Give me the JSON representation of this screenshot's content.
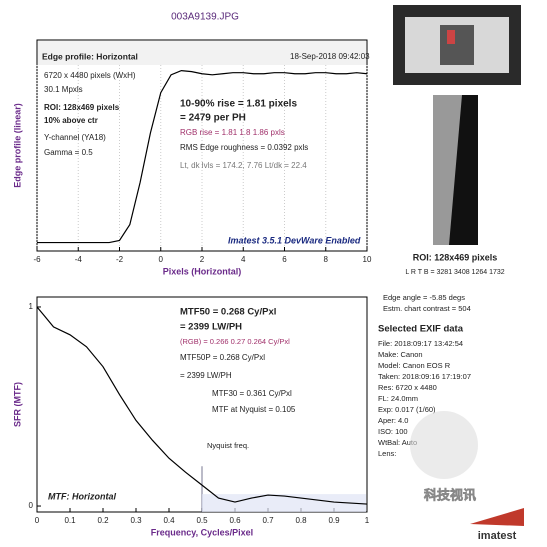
{
  "title": "003A9139.JPG",
  "chart_data": [
    {
      "type": "line",
      "x_label": "Pixels (Horizontal)",
      "y_label": "Edge profile (linear)",
      "x": [
        -6,
        -5.5,
        -5,
        -4.5,
        -4,
        -3.5,
        -3,
        -2.5,
        -2,
        -1.5,
        -1,
        -0.5,
        0,
        0.5,
        1,
        1.5,
        2,
        2.5,
        3,
        3.5,
        4,
        4.5,
        5,
        5.5,
        6,
        6.5,
        7,
        7.5,
        8,
        8.5,
        9,
        9.5,
        10
      ],
      "values": [
        8,
        8,
        8,
        8,
        8,
        8,
        8,
        8,
        10,
        25,
        65,
        112,
        150,
        167,
        171,
        170,
        168,
        167,
        168,
        169,
        169,
        168,
        168,
        169,
        169,
        168,
        168,
        169,
        169,
        168,
        168,
        169,
        168
      ],
      "color": "#000000",
      "xlim": [
        -6,
        10
      ],
      "ylim": [
        0,
        200
      ],
      "xticks": [
        -6,
        -4,
        -2,
        0,
        2,
        4,
        6,
        8,
        10
      ],
      "grid": true,
      "annotations": [
        "Edge profile: Horizontal",
        "18-Sep-2018 09:42:03",
        "6720 x 4480 pixels (WxH)",
        "30.1 Mpxls",
        "ROI: 128x469 pixels",
        "10% above ctr",
        "Y-channel (YA18)",
        "Gamma = 0.5",
        "10-90% rise = 1.81 pixels",
        "= 2479 per PH",
        "RGB rise = 1.81  1.8  1.86 pxls",
        "RMS Edge roughness = 0.0392 pxls",
        "Lt, dk lvls = 174.2, 7.76   Lt/dk = 22.4",
        "Imatest 3.5.1 DevWare Enabled"
      ]
    },
    {
      "type": "line",
      "x_label": "Frequency, Cycles/Pixel",
      "y_label": "SFR (MTF)",
      "x": [
        0,
        0.02,
        0.05,
        0.1,
        0.15,
        0.2,
        0.25,
        0.3,
        0.35,
        0.4,
        0.45,
        0.5,
        0.55,
        0.6,
        0.65,
        0.7,
        0.75,
        0.8,
        0.85,
        0.9,
        0.95,
        1
      ],
      "values": [
        1,
        0.96,
        0.9,
        0.86,
        0.8,
        0.7,
        0.56,
        0.43,
        0.33,
        0.24,
        0.17,
        0.105,
        0.04,
        0.02,
        0.04,
        0.055,
        0.05,
        0.04,
        0.03,
        0.02,
        0.015,
        0.01
      ],
      "color": "#000000",
      "xlim": [
        0,
        1
      ],
      "ylim": [
        -0.03,
        1.05
      ],
      "xticks": [
        0,
        0.1,
        0.2,
        0.3,
        0.4,
        0.5,
        0.6,
        0.7,
        0.8,
        0.9,
        1
      ],
      "yticks": [
        0,
        1
      ],
      "grid": false,
      "nyquist": 0.5,
      "annotations": [
        "MTF50 = 0.268 Cy/Pxl",
        "= 2399 LW/PH",
        "(RGB) = 0.266  0.27  0.264 Cy/Pxl",
        "MTF50P = 0.268 Cy/Pxl",
        "= 2399 LW/PH",
        "MTF30 = 0.361 Cy/Pxl",
        "MTF at Nyquist = 0.105",
        "Nyquist freq.",
        "MTF: Horizontal"
      ]
    }
  ],
  "panel": {
    "roi": "ROI: 128x469 pixels",
    "lrtb": "L R T B = 3281 3408 1264 1732",
    "edge_angle": "Edge angle = -5.85 degs",
    "contrast": "Estm. chart contrast = 504",
    "exif_title": "Selected EXIF data",
    "exif": [
      "File:   2018:09:17 13:42:54",
      "Make:   Canon",
      "Model:  Canon EOS R",
      "Taken:  2018:09:16 17:19:07",
      "Res:    6720 x 4480",
      "FL:     24.0mm",
      "Exp:    0.017 (1/60)",
      "Aper:   4.0",
      "ISO:    100",
      "WtBal:  Auto",
      "Lens:"
    ],
    "watermark": "科技视讯",
    "logo": "imatest"
  }
}
